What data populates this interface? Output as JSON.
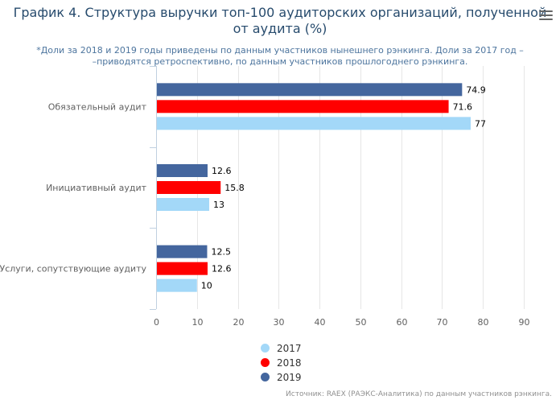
{
  "title_lines": [
    "График 4. Структура выручки топ-100 аудиторских организаций, полученной",
    "от аудита (%)"
  ],
  "subtitle_lines": [
    "*Доли за 2018 и 2019 годы приведены по данным участников нынешнего рэнкинга. Доли за 2017 год –",
    "–приводятся ретроспективно, по данным участников прошлогоднего рэнкинга."
  ],
  "menu_icon": "hamburger-menu-icon",
  "source": "Источник: RAEX (РАЭКС-Аналитика) по данным участников рэнкинга.",
  "chart_data": {
    "type": "bar",
    "orientation": "horizontal",
    "title": "График 4. Структура выручки топ-100 аудиторских организаций, полученной от аудита (%)",
    "categories": [
      "Обязательный аудит",
      "Инициативный аудит",
      "Услуги, сопутствующие аудиту"
    ],
    "series": [
      {
        "name": "2019",
        "color": "#44669e",
        "values": [
          74.9,
          12.6,
          12.5
        ],
        "labels": [
          "74.9",
          "12.6",
          "12.5"
        ]
      },
      {
        "name": "2018",
        "color": "#ff0000",
        "values": [
          71.6,
          15.8,
          12.6
        ],
        "labels": [
          "71.6",
          "15.8",
          "12.6"
        ]
      },
      {
        "name": "2017",
        "color": "#a3d8f8",
        "values": [
          77,
          13,
          10
        ],
        "labels": [
          "77",
          "13",
          "10"
        ]
      }
    ],
    "xlim": [
      0,
      90
    ],
    "xticks": [
      0,
      10,
      20,
      30,
      40,
      50,
      60,
      70,
      80,
      90
    ],
    "grid": true,
    "legend_position": "bottom-center",
    "legend_order": [
      "2017",
      "2018",
      "2019"
    ]
  }
}
